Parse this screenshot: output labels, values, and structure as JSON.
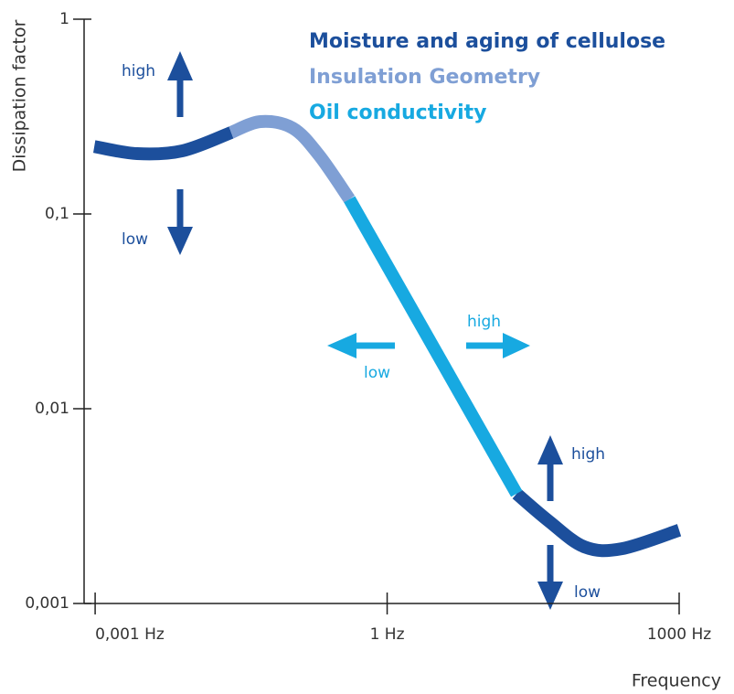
{
  "chart_data": {
    "type": "line",
    "x_label": "Frequency",
    "y_label": "Dissipation factor",
    "xlog": true,
    "ylog": true,
    "xlim": [
      0.00077,
      1000
    ],
    "ylim": [
      0.001,
      1
    ],
    "xticks": [
      {
        "value": 0.001,
        "label": "0,001 Hz"
      },
      {
        "value": 1,
        "label": "1 Hz"
      },
      {
        "value": 1000,
        "label": "1000 Hz"
      }
    ],
    "yticks": [
      {
        "value": 0.001,
        "label": "0,001"
      },
      {
        "value": 0.01,
        "label": "0,01"
      },
      {
        "value": 0.1,
        "label": "0,1"
      },
      1
    ],
    "series": [
      {
        "name": "Moisture and aging of cellulose",
        "color": "#1c4f9c",
        "x": [
          0.00098,
          0.0027,
          0.0079,
          0.025,
          null,
          21.4,
          45.7,
          107,
          257,
          1000
        ],
        "values": [
          0.222,
          0.204,
          0.211,
          0.262,
          null,
          0.00366,
          0.00265,
          0.00195,
          0.00191,
          0.00238
        ]
      },
      {
        "name": "Insulation Geometry",
        "color": "#7f9fd4",
        "x": [
          0.025,
          0.05,
          0.107,
          0.2,
          0.41
        ],
        "values": [
          0.262,
          0.298,
          0.276,
          0.2,
          0.119
        ]
      },
      {
        "name": "Oil conductivity",
        "color": "#17a9e1",
        "x": [
          0.41,
          21.4
        ],
        "values": [
          0.119,
          0.00366
        ]
      }
    ],
    "annotations": [
      "high",
      "low",
      "high",
      "low",
      "high",
      "low"
    ]
  }
}
